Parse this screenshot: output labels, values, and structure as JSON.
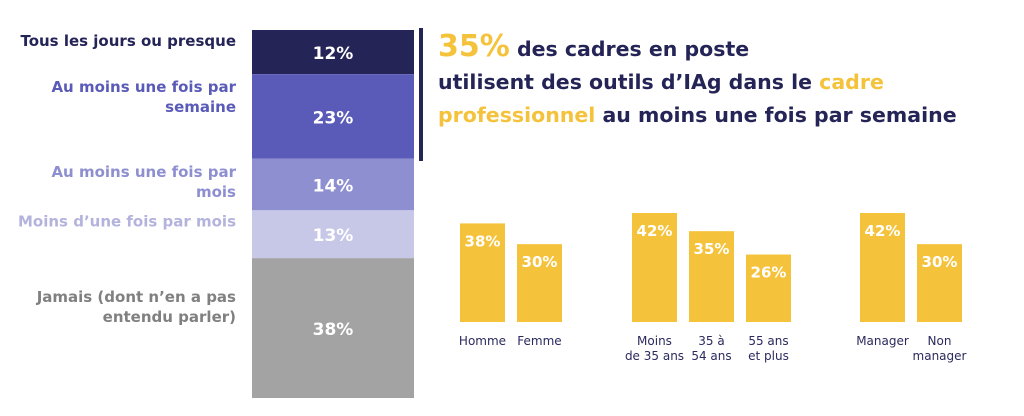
{
  "colors": {
    "navy": "#252457",
    "purple_dark": "#5a5bb8",
    "purple_mid": "#8e8fd0",
    "purple_light": "#c7c7e8",
    "grey": "#a3a3a3",
    "yellow": "#f5c33b"
  },
  "headline": {
    "pct": "35%",
    "part1": " des cadres en poste",
    "part2": "utilisent des outils d’IAg dans le ",
    "highlight1": "cadre",
    "highlight2": "professionnel",
    "part3": " au moins une fois par semaine"
  },
  "chart_data": [
    {
      "type": "bar",
      "stacked": true,
      "orientation": "vertical-stack",
      "categories": [
        "Tous les jours ou presque",
        "Au moins une fois par semaine",
        "Au moins une fois par mois",
        "Moins d’une fois par mois",
        "Jamais (dont n’en a pas entendu parler)"
      ],
      "label_lines": [
        [
          "Tous les jours ou presque"
        ],
        [
          "Au moins une fois par",
          "semaine"
        ],
        [
          "Au moins une fois par",
          "mois"
        ],
        [
          "Moins d’une fois par mois"
        ],
        [
          "Jamais (dont n’en a pas",
          "entendu parler)"
        ]
      ],
      "values": [
        12,
        23,
        14,
        13,
        38
      ],
      "value_labels": [
        "12%",
        "23%",
        "14%",
        "13%",
        "38%"
      ],
      "segment_colors": [
        "#252457",
        "#5a5bb8",
        "#8e8fd0",
        "#c7c7e8",
        "#a3a3a3"
      ],
      "label_colors": [
        "#252457",
        "#5a5bb8",
        "#8e8fd0",
        "#b3b3dd",
        "#808080"
      ]
    },
    {
      "type": "bar",
      "groups": [
        {
          "categories": [
            [
              "Homme"
            ],
            [
              "Femme"
            ]
          ],
          "values": [
            38,
            30
          ],
          "value_labels": [
            "38%",
            "30%"
          ]
        },
        {
          "categories": [
            [
              "Moins",
              "de 35 ans"
            ],
            [
              "35 à",
              "54 ans"
            ],
            [
              "55 ans",
              "et plus"
            ]
          ],
          "values": [
            42,
            35,
            26
          ],
          "value_labels": [
            "42%",
            "35%",
            "26%"
          ]
        },
        {
          "categories": [
            [
              "Manager"
            ],
            [
              "Non",
              "manager"
            ]
          ],
          "values": [
            42,
            30
          ],
          "value_labels": [
            "42%",
            "30%"
          ]
        }
      ],
      "ylim": [
        0,
        42
      ],
      "color": "#f5c33b"
    }
  ]
}
